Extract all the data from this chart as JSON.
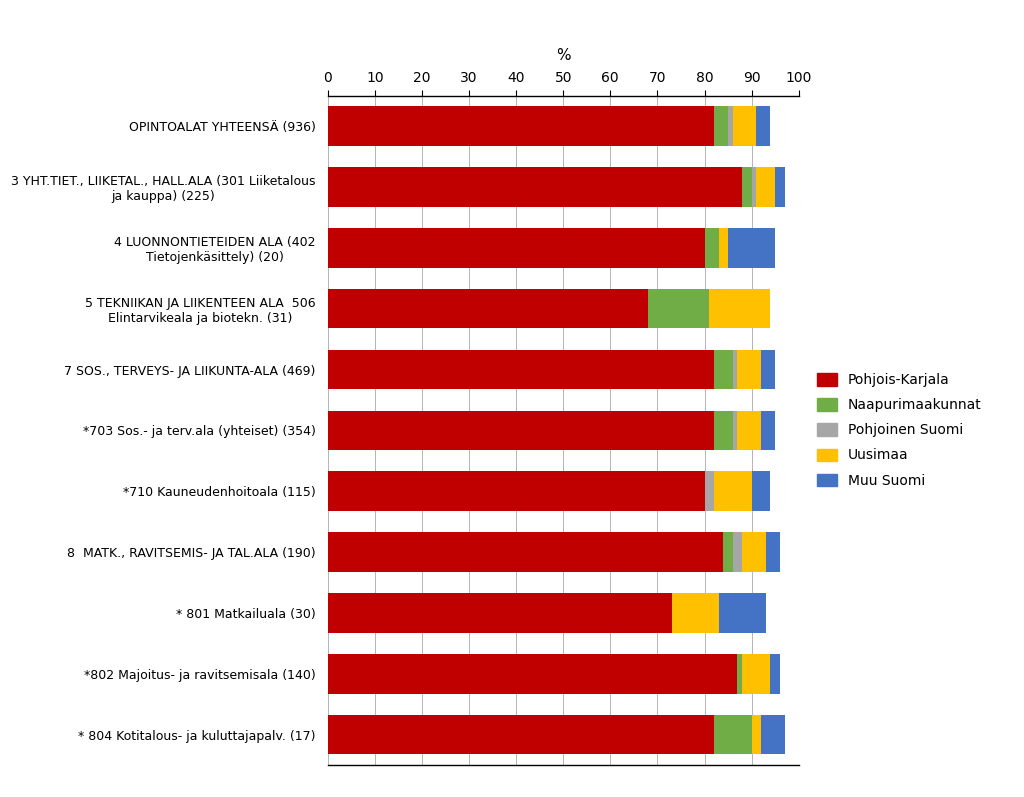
{
  "categories": [
    "OPINTOALAT YHTEENSÄ (936)",
    "3 YHT.TIET., LIIKETAL., HALL.ALA (301 Liiketalous\nja kauppa) (225)",
    "4 LUONNONTIETEIDEN ALA (402\nTietojenkäsittely) (20)",
    "5 TEKNIIKAN JA LIIKENTEEN ALA  506\nElintarvikeala ja biotekn. (31)",
    "7 SOS., TERVEYS- JA LIIKUNTA-ALA (469)",
    "*703 Sos.- ja terv.ala (yhteiset) (354)",
    "*710 Kauneudenhoitoala (115)",
    "8  MATK., RAVITSEMIS- JA TAL.ALA (190)",
    "* 801 Matkailuala (30)",
    "*802 Majoitus- ja ravitsemisala (140)",
    "* 804 Kotitalous- ja kuluttajapalv. (17)"
  ],
  "series": {
    "Pohjois-Karjala": [
      82,
      88,
      80,
      68,
      82,
      82,
      80,
      84,
      73,
      87,
      82
    ],
    "Naapurimaakunnat": [
      3,
      2,
      3,
      13,
      4,
      4,
      0,
      2,
      0,
      1,
      8
    ],
    "Pohjoinen Suomi": [
      1,
      1,
      0,
      0,
      1,
      1,
      2,
      2,
      0,
      0,
      0
    ],
    "Uusimaa": [
      5,
      4,
      2,
      13,
      5,
      5,
      8,
      5,
      10,
      6,
      2
    ],
    "Muu Suomi": [
      3,
      2,
      10,
      0,
      3,
      3,
      4,
      3,
      10,
      2,
      5
    ]
  },
  "colors": {
    "Pohjois-Karjala": "#C00000",
    "Naapurimaakunnat": "#70AD47",
    "Pohjoinen Suomi": "#A6A6A6",
    "Uusimaa": "#FFC000",
    "Muu Suomi": "#4472C4"
  },
  "xlabel": "%",
  "xlim": [
    0,
    100
  ],
  "xticks": [
    0,
    10,
    20,
    30,
    40,
    50,
    60,
    70,
    80,
    90,
    100
  ],
  "bar_height": 0.65,
  "figsize": [
    10.24,
    7.97
  ],
  "dpi": 100,
  "legend_labels": [
    "Pohjois-Karjala",
    "Naapurimaakunnat",
    "Pohjoinen Suomi",
    "Uusimaa",
    "Muu Suomi"
  ]
}
